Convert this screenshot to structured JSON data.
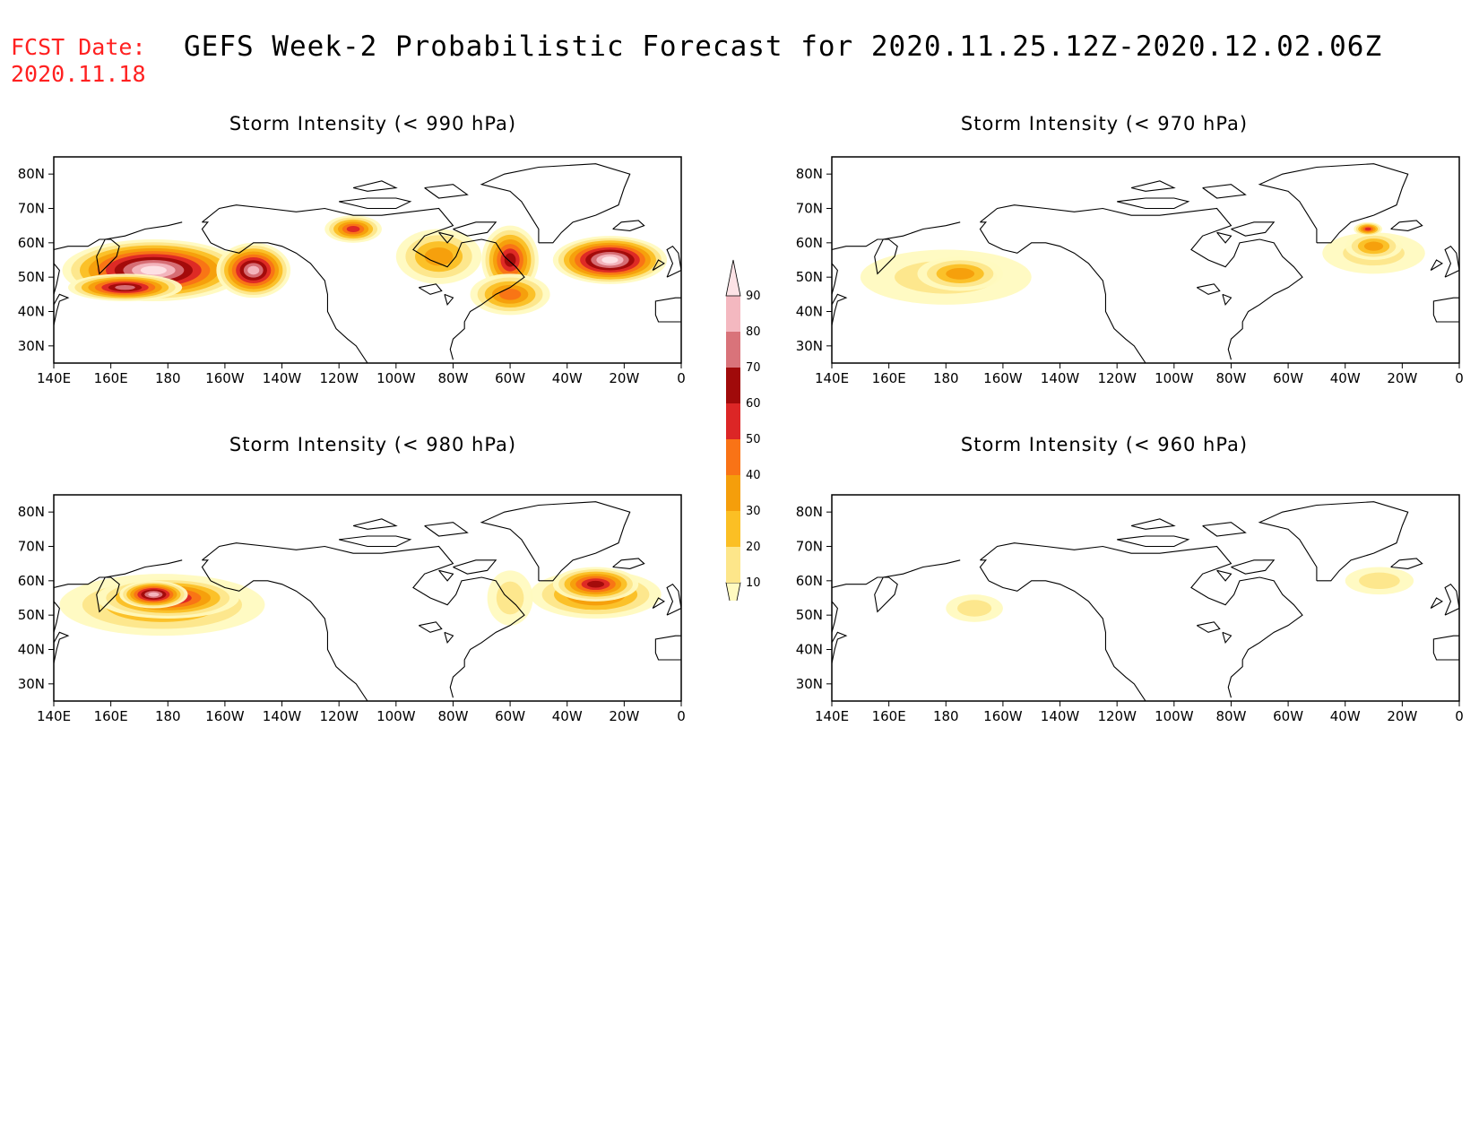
{
  "header": {
    "fcst_label": "FCST Date:",
    "fcst_date": "2020.11.18",
    "title": "GEFS Week-2 Probabilistic Forecast for 2020.11.25.12Z-2020.12.02.06Z"
  },
  "axes": {
    "x_ticks": [
      "140E",
      "160E",
      "180",
      "160W",
      "140W",
      "120W",
      "100W",
      "80W",
      "60W",
      "40W",
      "20W",
      "0"
    ],
    "y_ticks": [
      "80N",
      "70N",
      "60N",
      "50N",
      "40N",
      "30N"
    ]
  },
  "colorbar": {
    "levels": [
      "10",
      "20",
      "30",
      "40",
      "50",
      "60",
      "70",
      "80",
      "90"
    ],
    "colors": [
      "#fffac0",
      "#fde68a",
      "#fbbf24",
      "#f59e0b",
      "#f97316",
      "#dc2626",
      "#a00a0a",
      "#d9737a",
      "#f4b8c0",
      "#fde3e6"
    ]
  },
  "panels": [
    {
      "title": "Storm Intensity (< 990 hPa)",
      "blobs": [
        {
          "lon": 175,
          "lat": 52,
          "rx": 32,
          "ry": 9,
          "level": 9
        },
        {
          "lon": -150,
          "lat": 52,
          "rx": 13,
          "ry": 8,
          "level": 8
        },
        {
          "lon": 165,
          "lat": 47,
          "rx": 20,
          "ry": 4,
          "level": 7
        },
        {
          "lon": -25,
          "lat": 55,
          "rx": 20,
          "ry": 7,
          "level": 9
        },
        {
          "lon": -60,
          "lat": 55,
          "rx": 10,
          "ry": 10,
          "level": 6
        },
        {
          "lon": -115,
          "lat": 64,
          "rx": 10,
          "ry": 4,
          "level": 5
        },
        {
          "lon": -85,
          "lat": 56,
          "rx": 15,
          "ry": 8,
          "level": 3
        },
        {
          "lon": -60,
          "lat": 45,
          "rx": 14,
          "ry": 6,
          "level": 4
        }
      ]
    },
    {
      "title": "Storm Intensity (< 970 hPa)",
      "blobs": [
        {
          "lon": 180,
          "lat": 50,
          "rx": 30,
          "ry": 8,
          "level": 1
        },
        {
          "lon": -175,
          "lat": 51,
          "rx": 15,
          "ry": 5,
          "level": 3
        },
        {
          "lon": -30,
          "lat": 57,
          "rx": 18,
          "ry": 6,
          "level": 1
        },
        {
          "lon": -30,
          "lat": 59,
          "rx": 10,
          "ry": 4,
          "level": 3
        },
        {
          "lon": -32,
          "lat": 64,
          "rx": 5,
          "ry": 2,
          "level": 5
        }
      ]
    },
    {
      "title": "Storm Intensity (< 980 hPa)",
      "blobs": [
        {
          "lon": 178,
          "lat": 53,
          "rx": 36,
          "ry": 9,
          "level": 3
        },
        {
          "lon": 180,
          "lat": 55,
          "rx": 25,
          "ry": 6,
          "level": 6
        },
        {
          "lon": 175,
          "lat": 56,
          "rx": 12,
          "ry": 4,
          "level": 8
        },
        {
          "lon": -30,
          "lat": 56,
          "rx": 23,
          "ry": 7,
          "level": 4
        },
        {
          "lon": -30,
          "lat": 59,
          "rx": 15,
          "ry": 5,
          "level": 6
        },
        {
          "lon": -60,
          "lat": 55,
          "rx": 8,
          "ry": 8,
          "level": 1
        }
      ]
    },
    {
      "title": "Storm Intensity (< 960 hPa)",
      "blobs": [
        {
          "lon": -170,
          "lat": 52,
          "rx": 10,
          "ry": 4,
          "level": 1
        },
        {
          "lon": -28,
          "lat": 60,
          "rx": 12,
          "ry": 4,
          "level": 1
        }
      ]
    }
  ]
}
